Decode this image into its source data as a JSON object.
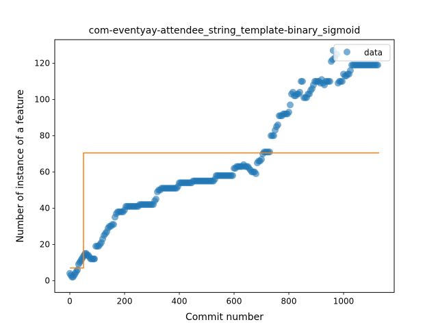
{
  "chart_data": {
    "type": "scatter",
    "title": "com-eventyay-attendee_string_template-binary_sigmoid",
    "xlabel": "Commit number",
    "ylabel": "Number of instance of a feature",
    "xlim": [
      -55,
      1185
    ],
    "ylim": [
      -6.5,
      133
    ],
    "xticks": [
      0,
      200,
      400,
      600,
      800,
      1000
    ],
    "yticks": [
      0,
      20,
      40,
      60,
      80,
      100,
      120
    ],
    "grid": false,
    "legend": {
      "placement": "top-right",
      "entries": [
        "data"
      ]
    },
    "colors": {
      "points": "#1f77b4",
      "fit": "#ff7f0e"
    },
    "series": [
      {
        "name": "data",
        "kind": "scatter",
        "points": [
          [
            0,
            4
          ],
          [
            4,
            3
          ],
          [
            8,
            2
          ],
          [
            12,
            2
          ],
          [
            16,
            3
          ],
          [
            20,
            4
          ],
          [
            24,
            5
          ],
          [
            28,
            6
          ],
          [
            32,
            9
          ],
          [
            36,
            10
          ],
          [
            40,
            11
          ],
          [
            44,
            12
          ],
          [
            48,
            13
          ],
          [
            52,
            14
          ],
          [
            56,
            15
          ],
          [
            60,
            15
          ],
          [
            64,
            14
          ],
          [
            68,
            14
          ],
          [
            72,
            13
          ],
          [
            76,
            12
          ],
          [
            80,
            12
          ],
          [
            84,
            12
          ],
          [
            88,
            12
          ],
          [
            90,
            12
          ],
          [
            95,
            19
          ],
          [
            100,
            19
          ],
          [
            105,
            19
          ],
          [
            110,
            20
          ],
          [
            115,
            21
          ],
          [
            120,
            23
          ],
          [
            125,
            25
          ],
          [
            130,
            26
          ],
          [
            135,
            27
          ],
          [
            140,
            29
          ],
          [
            145,
            30
          ],
          [
            150,
            30
          ],
          [
            155,
            31
          ],
          [
            160,
            31
          ],
          [
            165,
            35
          ],
          [
            170,
            37
          ],
          [
            175,
            38
          ],
          [
            180,
            38
          ],
          [
            185,
            38
          ],
          [
            190,
            38
          ],
          [
            195,
            38
          ],
          [
            200,
            39
          ],
          [
            205,
            41
          ],
          [
            210,
            41
          ],
          [
            215,
            41
          ],
          [
            220,
            41
          ],
          [
            225,
            41
          ],
          [
            230,
            41
          ],
          [
            235,
            41
          ],
          [
            240,
            41
          ],
          [
            245,
            41
          ],
          [
            250,
            41
          ],
          [
            255,
            42
          ],
          [
            260,
            42
          ],
          [
            265,
            42
          ],
          [
            270,
            42
          ],
          [
            275,
            42
          ],
          [
            280,
            42
          ],
          [
            285,
            42
          ],
          [
            290,
            42
          ],
          [
            295,
            42
          ],
          [
            300,
            42
          ],
          [
            305,
            42
          ],
          [
            310,
            44
          ],
          [
            315,
            45
          ],
          [
            320,
            49
          ],
          [
            325,
            50
          ],
          [
            330,
            50
          ],
          [
            335,
            51
          ],
          [
            340,
            51
          ],
          [
            345,
            51
          ],
          [
            350,
            51
          ],
          [
            355,
            51
          ],
          [
            360,
            51
          ],
          [
            365,
            51
          ],
          [
            370,
            51
          ],
          [
            375,
            51
          ],
          [
            380,
            51
          ],
          [
            385,
            51
          ],
          [
            390,
            51
          ],
          [
            395,
            52
          ],
          [
            400,
            54
          ],
          [
            405,
            54
          ],
          [
            410,
            54
          ],
          [
            415,
            54
          ],
          [
            420,
            54
          ],
          [
            425,
            54
          ],
          [
            430,
            54
          ],
          [
            435,
            54
          ],
          [
            440,
            54
          ],
          [
            445,
            54
          ],
          [
            450,
            55
          ],
          [
            455,
            55
          ],
          [
            460,
            55
          ],
          [
            465,
            55
          ],
          [
            470,
            55
          ],
          [
            475,
            55
          ],
          [
            480,
            55
          ],
          [
            485,
            55
          ],
          [
            490,
            55
          ],
          [
            495,
            55
          ],
          [
            500,
            55
          ],
          [
            505,
            55
          ],
          [
            510,
            55
          ],
          [
            515,
            55
          ],
          [
            520,
            55
          ],
          [
            525,
            55
          ],
          [
            530,
            56
          ],
          [
            535,
            58
          ],
          [
            540,
            58
          ],
          [
            545,
            58
          ],
          [
            550,
            58
          ],
          [
            555,
            58
          ],
          [
            560,
            58
          ],
          [
            565,
            58
          ],
          [
            570,
            58
          ],
          [
            575,
            58
          ],
          [
            580,
            58
          ],
          [
            585,
            58
          ],
          [
            590,
            58
          ],
          [
            595,
            58
          ],
          [
            600,
            62
          ],
          [
            605,
            62
          ],
          [
            610,
            63
          ],
          [
            615,
            63
          ],
          [
            620,
            63
          ],
          [
            625,
            63
          ],
          [
            630,
            63
          ],
          [
            635,
            64
          ],
          [
            640,
            63
          ],
          [
            645,
            63
          ],
          [
            650,
            63
          ],
          [
            655,
            62
          ],
          [
            660,
            61
          ],
          [
            665,
            60
          ],
          [
            670,
            60
          ],
          [
            675,
            60
          ],
          [
            680,
            59
          ],
          [
            685,
            65
          ],
          [
            690,
            66
          ],
          [
            695,
            66
          ],
          [
            700,
            67
          ],
          [
            705,
            70
          ],
          [
            710,
            71
          ],
          [
            715,
            71
          ],
          [
            720,
            71
          ],
          [
            725,
            71
          ],
          [
            730,
            71
          ],
          [
            735,
            80
          ],
          [
            740,
            80
          ],
          [
            745,
            80
          ],
          [
            750,
            83
          ],
          [
            755,
            85
          ],
          [
            760,
            86
          ],
          [
            765,
            91
          ],
          [
            770,
            91
          ],
          [
            775,
            91
          ],
          [
            780,
            92
          ],
          [
            785,
            92
          ],
          [
            790,
            92
          ],
          [
            795,
            92
          ],
          [
            800,
            93
          ],
          [
            805,
            97
          ],
          [
            810,
            103
          ],
          [
            815,
            104
          ],
          [
            820,
            102
          ],
          [
            825,
            102
          ],
          [
            830,
            103
          ],
          [
            835,
            103
          ],
          [
            840,
            104
          ],
          [
            845,
            110
          ],
          [
            850,
            110
          ],
          [
            855,
            101
          ],
          [
            860,
            101
          ],
          [
            865,
            101
          ],
          [
            870,
            103
          ],
          [
            875,
            103
          ],
          [
            880,
            105
          ],
          [
            885,
            106
          ],
          [
            890,
            108
          ],
          [
            895,
            110
          ],
          [
            900,
            110
          ],
          [
            905,
            110
          ],
          [
            910,
            110
          ],
          [
            915,
            109
          ],
          [
            920,
            111
          ],
          [
            925,
            109
          ],
          [
            930,
            108
          ],
          [
            935,
            110
          ],
          [
            940,
            110
          ],
          [
            945,
            110
          ],
          [
            950,
            110
          ],
          [
            955,
            121
          ],
          [
            960,
            122
          ],
          [
            962,
            127
          ],
          [
            968,
            123
          ],
          [
            975,
            125
          ],
          [
            980,
            109
          ],
          [
            985,
            110
          ],
          [
            990,
            110
          ],
          [
            995,
            110
          ],
          [
            1000,
            114
          ],
          [
            1005,
            113
          ],
          [
            1010,
            113
          ],
          [
            1015,
            114
          ],
          [
            1020,
            114
          ],
          [
            1025,
            116
          ],
          [
            1030,
            119
          ],
          [
            1035,
            119
          ],
          [
            1040,
            119
          ],
          [
            1045,
            119
          ],
          [
            1050,
            119
          ],
          [
            1055,
            119
          ],
          [
            1060,
            119
          ],
          [
            1065,
            119
          ],
          [
            1070,
            119
          ],
          [
            1075,
            119
          ],
          [
            1080,
            119
          ],
          [
            1085,
            119
          ],
          [
            1090,
            119
          ],
          [
            1095,
            119
          ],
          [
            1100,
            119
          ],
          [
            1105,
            119
          ],
          [
            1110,
            119
          ],
          [
            1115,
            119
          ],
          [
            1120,
            119
          ],
          [
            1125,
            119
          ]
        ]
      },
      {
        "kind": "line",
        "points": [
          [
            0,
            7
          ],
          [
            50,
            7
          ],
          [
            50,
            70.5
          ],
          [
            1130,
            70.5
          ]
        ]
      }
    ]
  }
}
